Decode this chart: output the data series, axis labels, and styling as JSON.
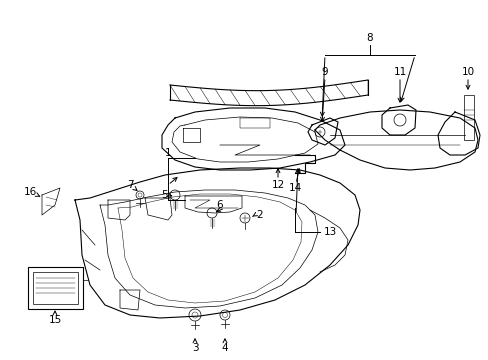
{
  "bg_color": "#ffffff",
  "line_color": "#000000",
  "figsize": [
    4.89,
    3.6
  ],
  "dpi": 100,
  "img_extent": [
    0,
    489,
    0,
    360
  ]
}
